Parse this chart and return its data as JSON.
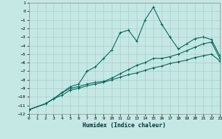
{
  "xlabel": "Humidex (Indice chaleur)",
  "background_color": "#c5e8e4",
  "grid_color": "#aaccca",
  "line_color": "#006655",
  "xlim": [
    0,
    23
  ],
  "ylim": [
    -12,
    1
  ],
  "xticks": [
    0,
    1,
    2,
    3,
    4,
    5,
    6,
    7,
    8,
    9,
    10,
    11,
    12,
    13,
    14,
    15,
    16,
    17,
    18,
    19,
    20,
    21,
    22,
    23
  ],
  "yticks": [
    1,
    0,
    -1,
    -2,
    -3,
    -4,
    -5,
    -6,
    -7,
    -8,
    -9,
    -10,
    -11,
    -12
  ],
  "series1_x": [
    0,
    2,
    3,
    4,
    5,
    6,
    7,
    8,
    9,
    10,
    11,
    12,
    13,
    14,
    15,
    16,
    17,
    18,
    19,
    20,
    21,
    22,
    23
  ],
  "series1_y": [
    -11.5,
    -10.8,
    -10.2,
    -9.5,
    -8.8,
    -8.5,
    -7.0,
    -6.5,
    -5.5,
    -4.5,
    -2.5,
    -2.2,
    -3.5,
    -1.0,
    0.5,
    -1.5,
    -3.0,
    -4.4,
    -3.8,
    -3.2,
    -3.0,
    -3.3,
    -5.2
  ],
  "series2_x": [
    0,
    2,
    3,
    4,
    5,
    6,
    7,
    8,
    9,
    10,
    11,
    12,
    13,
    14,
    15,
    16,
    17,
    18,
    19,
    20,
    21,
    22,
    23
  ],
  "series2_y": [
    -11.5,
    -10.8,
    -10.2,
    -9.5,
    -9.0,
    -8.8,
    -8.5,
    -8.3,
    -8.2,
    -7.8,
    -7.3,
    -6.8,
    -6.3,
    -6.0,
    -5.5,
    -5.5,
    -5.3,
    -5.0,
    -4.6,
    -4.2,
    -3.8,
    -3.6,
    -5.5
  ],
  "series3_x": [
    0,
    2,
    3,
    4,
    5,
    6,
    7,
    8,
    9,
    10,
    11,
    12,
    13,
    14,
    15,
    16,
    17,
    18,
    19,
    20,
    21,
    22,
    23
  ],
  "series3_y": [
    -11.5,
    -10.8,
    -10.2,
    -9.8,
    -9.2,
    -9.0,
    -8.7,
    -8.5,
    -8.3,
    -8.0,
    -7.7,
    -7.4,
    -7.2,
    -6.9,
    -6.6,
    -6.4,
    -6.1,
    -5.9,
    -5.7,
    -5.4,
    -5.2,
    -5.0,
    -5.8
  ]
}
